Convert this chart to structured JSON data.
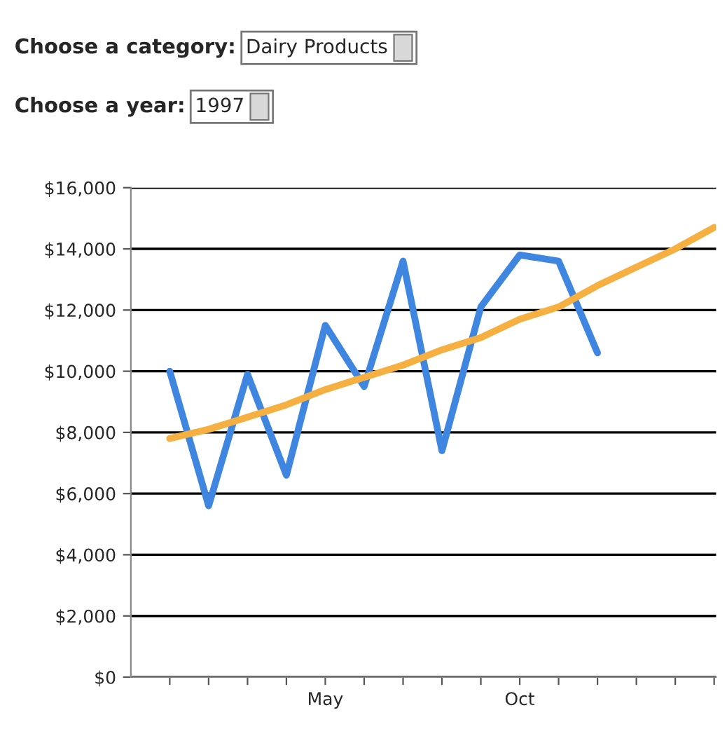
{
  "chart_data": {
    "type": "line",
    "annotations": [
      "Choose a category:",
      "Dairy Products",
      "Choose a year:",
      "1997"
    ],
    "categories": [
      null,
      null,
      null,
      null,
      "May",
      null,
      null,
      null,
      null,
      "Oct",
      null,
      null,
      null,
      null,
      null
    ],
    "series": [
      {
        "color": "#3f86e0",
        "values": [
          10000,
          5600,
          9900,
          6600,
          11500,
          9500,
          13600,
          7400,
          12100,
          13800,
          13600,
          10600,
          null,
          null,
          null
        ]
      },
      {
        "color": "#f5b041",
        "values": [
          7800,
          8100,
          8500,
          8900,
          9400,
          9800,
          10200,
          10700,
          11100,
          11700,
          12100,
          12800,
          13400,
          14000,
          14700
        ]
      }
    ],
    "ylim": [
      0,
      16000
    ],
    "yticks": [
      {
        "value": 0,
        "label": "$0"
      },
      {
        "value": 2000,
        "label": "$2,000"
      },
      {
        "value": 4000,
        "label": "$4,000"
      },
      {
        "value": 6000,
        "label": "$6,000"
      },
      {
        "value": 8000,
        "label": "$8,000"
      },
      {
        "value": 10000,
        "label": "$10,000"
      },
      {
        "value": 12000,
        "label": "$12,000"
      },
      {
        "value": 14000,
        "label": "$14,000"
      },
      {
        "value": 16000,
        "label": "$16,000"
      }
    ],
    "grid": "y"
  }
}
